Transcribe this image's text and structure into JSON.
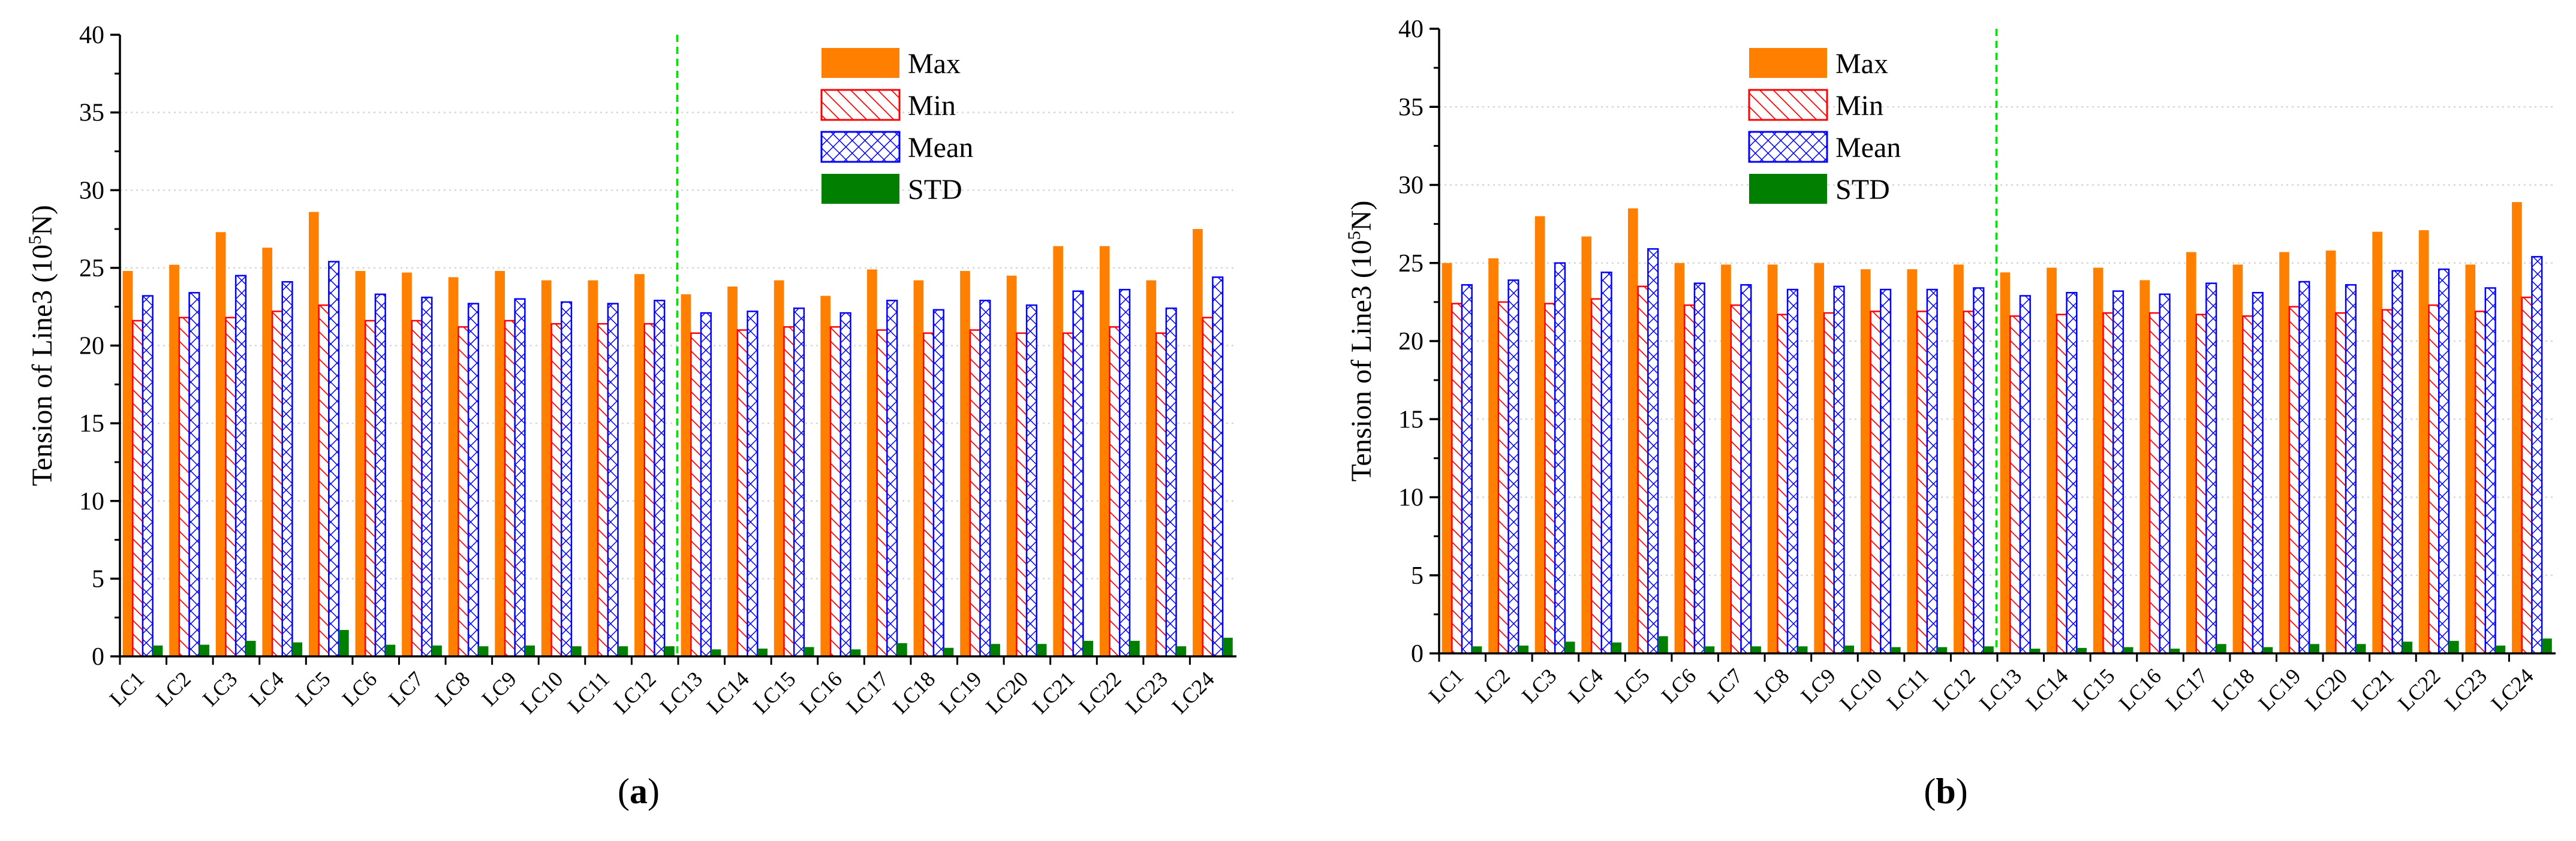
{
  "colors": {
    "max": "#ff7f00",
    "min": "#ff0000",
    "mean": "#0000ff",
    "std": "#007f00",
    "divider": "#00dd00",
    "grid": "#d6d6d6"
  },
  "chart_data": [
    {
      "type": "bar",
      "panel_label_open": "(",
      "panel_label": "a",
      "panel_label_close": ")",
      "ylabel_main": "Tension of Line3 (10",
      "ylabel_sup": "5",
      "ylabel_tail": "N)",
      "xlabel": "",
      "ylim": [
        0,
        40
      ],
      "yticks": [
        0,
        5,
        10,
        15,
        20,
        25,
        30,
        35,
        40
      ],
      "grid": true,
      "legend_position": "top-right",
      "divider_after": "LC12",
      "categories": [
        "LC1",
        "LC2",
        "LC3",
        "LC4",
        "LC5",
        "LC6",
        "LC7",
        "LC8",
        "LC9",
        "LC10",
        "LC11",
        "LC12",
        "LC13",
        "LC14",
        "LC15",
        "LC16",
        "LC17",
        "LC18",
        "LC19",
        "LC20",
        "LC21",
        "LC22",
        "LC23",
        "LC24"
      ],
      "series": [
        {
          "name": "Max",
          "key": "max",
          "pattern": "solid",
          "values": [
            24.8,
            25.2,
            27.3,
            26.3,
            28.6,
            24.8,
            24.7,
            24.4,
            24.8,
            24.2,
            24.2,
            24.6,
            23.3,
            23.8,
            24.2,
            23.2,
            24.9,
            24.2,
            24.8,
            24.5,
            26.4,
            26.4,
            24.2,
            27.5
          ]
        },
        {
          "name": "Min",
          "key": "min",
          "pattern": "diagonal",
          "values": [
            21.6,
            21.8,
            21.8,
            22.2,
            22.6,
            21.6,
            21.6,
            21.2,
            21.6,
            21.4,
            21.4,
            21.4,
            20.8,
            21.0,
            21.2,
            21.2,
            21.0,
            20.8,
            21.0,
            20.8,
            20.8,
            21.2,
            20.8,
            21.8
          ]
        },
        {
          "name": "Mean",
          "key": "mean",
          "pattern": "crosshatch",
          "values": [
            23.2,
            23.4,
            24.5,
            24.1,
            25.4,
            23.3,
            23.1,
            22.7,
            23.0,
            22.8,
            22.7,
            22.9,
            22.1,
            22.2,
            22.4,
            22.1,
            22.9,
            22.3,
            22.9,
            22.6,
            23.5,
            23.6,
            22.4,
            24.4
          ]
        },
        {
          "name": "STD",
          "key": "std",
          "pattern": "solid",
          "values": [
            0.7,
            0.75,
            1.0,
            0.9,
            1.7,
            0.75,
            0.7,
            0.65,
            0.7,
            0.65,
            0.65,
            0.65,
            0.45,
            0.5,
            0.6,
            0.45,
            0.85,
            0.55,
            0.8,
            0.8,
            1.0,
            1.0,
            0.65,
            1.2
          ]
        }
      ]
    },
    {
      "type": "bar",
      "panel_label_open": "(",
      "panel_label": "b",
      "panel_label_close": ")",
      "ylabel_main": "Tension of Line3 (10",
      "ylabel_sup": "5",
      "ylabel_tail": "N)",
      "xlabel": "",
      "ylim": [
        0,
        40
      ],
      "yticks": [
        0,
        5,
        10,
        15,
        20,
        25,
        30,
        35,
        40
      ],
      "grid": true,
      "legend_position": "top-center",
      "divider_after": "LC12",
      "categories": [
        "LC1",
        "LC2",
        "LC3",
        "LC4",
        "LC5",
        "LC6",
        "LC7",
        "LC8",
        "LC9",
        "LC10",
        "LC11",
        "LC12",
        "LC13",
        "LC14",
        "LC15",
        "LC16",
        "LC17",
        "LC18",
        "LC19",
        "LC20",
        "LC21",
        "LC22",
        "LC23",
        "LC24"
      ],
      "series": [
        {
          "name": "Max",
          "key": "max",
          "pattern": "solid",
          "values": [
            25.0,
            25.3,
            28.0,
            26.7,
            28.5,
            25.0,
            24.9,
            24.9,
            25.0,
            24.6,
            24.6,
            24.9,
            24.4,
            24.7,
            24.7,
            23.9,
            25.7,
            24.9,
            25.7,
            25.8,
            27.0,
            27.1,
            24.9,
            28.9
          ]
        },
        {
          "name": "Min",
          "key": "min",
          "pattern": "diagonal",
          "values": [
            22.4,
            22.5,
            22.4,
            22.7,
            23.5,
            22.3,
            22.3,
            21.7,
            21.8,
            21.9,
            21.9,
            21.9,
            21.6,
            21.7,
            21.8,
            21.8,
            21.7,
            21.6,
            22.2,
            21.8,
            22.0,
            22.3,
            21.9,
            22.8
          ]
        },
        {
          "name": "Mean",
          "key": "mean",
          "pattern": "crosshatch",
          "values": [
            23.6,
            23.9,
            25.0,
            24.4,
            25.9,
            23.7,
            23.6,
            23.3,
            23.5,
            23.3,
            23.3,
            23.4,
            22.9,
            23.1,
            23.2,
            23.0,
            23.7,
            23.1,
            23.8,
            23.6,
            24.5,
            24.6,
            23.4,
            25.4
          ]
        },
        {
          "name": "STD",
          "key": "std",
          "pattern": "solid",
          "values": [
            0.45,
            0.5,
            0.75,
            0.7,
            1.1,
            0.45,
            0.45,
            0.45,
            0.5,
            0.4,
            0.4,
            0.45,
            0.3,
            0.35,
            0.4,
            0.3,
            0.6,
            0.4,
            0.6,
            0.6,
            0.75,
            0.8,
            0.5,
            0.95
          ]
        }
      ]
    }
  ]
}
